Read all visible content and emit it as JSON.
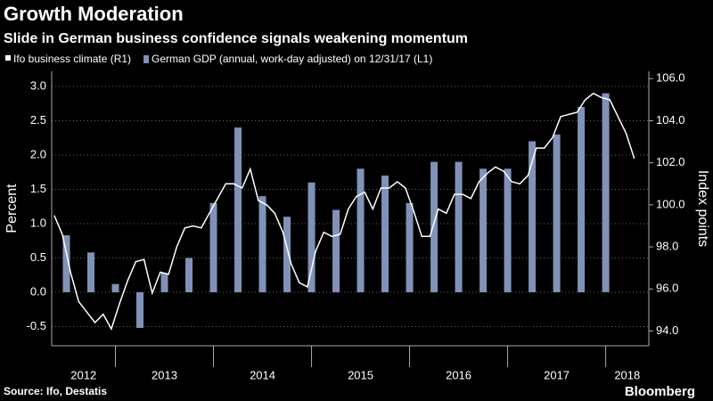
{
  "chart_data": {
    "type": "bar",
    "title": "Growth Moderation",
    "subtitle": "Slide in German business confidence signals weakening momentum",
    "source": "Source: Ifo, Destatis",
    "brand": "Bloomberg",
    "ylabel": "Percent",
    "y2label": "Index points",
    "xlim": [
      2012.35,
      2018.44
    ],
    "xticks": [
      2012,
      2013,
      2014,
      2015,
      2016,
      2017,
      2018
    ],
    "ylim": [
      -0.78,
      3.22
    ],
    "yticks": [
      -0.5,
      {
        "value": 0,
        "label": "0.0"
      },
      0.5,
      {
        "value": 1,
        "label": "1.0"
      },
      1.5,
      {
        "value": 2,
        "label": "2.0"
      },
      2.5,
      {
        "value": 3,
        "label": "3.0"
      }
    ],
    "y2lim": [
      93.3,
      106.35
    ],
    "y2ticks": [
      {
        "value": 94,
        "label": "94.0"
      },
      {
        "value": 96,
        "label": "96.0"
      },
      {
        "value": 98,
        "label": "98.0"
      },
      {
        "value": 100,
        "label": "100.0"
      },
      {
        "value": 102,
        "label": "102.0"
      },
      {
        "value": 104,
        "label": "104.0"
      },
      {
        "value": 106,
        "label": "106.0"
      }
    ],
    "grid": true,
    "series": [
      {
        "name": "Ifo business climate (R1)",
        "type": "line",
        "axis": "y2",
        "color": "#ffffff",
        "x": [
          2012.375,
          2012.458,
          2012.542,
          2012.625,
          2012.708,
          2012.792,
          2012.875,
          2012.958,
          2013.042,
          2013.125,
          2013.208,
          2013.292,
          2013.375,
          2013.458,
          2013.542,
          2013.625,
          2013.708,
          2013.792,
          2013.875,
          2013.958,
          2014.042,
          2014.125,
          2014.208,
          2014.292,
          2014.375,
          2014.458,
          2014.542,
          2014.625,
          2014.708,
          2014.792,
          2014.875,
          2014.958,
          2015.042,
          2015.125,
          2015.208,
          2015.292,
          2015.375,
          2015.458,
          2015.542,
          2015.625,
          2015.708,
          2015.792,
          2015.875,
          2015.958,
          2016.042,
          2016.125,
          2016.208,
          2016.292,
          2016.375,
          2016.458,
          2016.542,
          2016.625,
          2016.708,
          2016.792,
          2016.875,
          2016.958,
          2017.042,
          2017.125,
          2017.208,
          2017.292,
          2017.375,
          2017.458,
          2017.542,
          2017.625,
          2017.708,
          2017.792,
          2017.875,
          2017.958,
          2018.042,
          2018.125,
          2018.208,
          2018.292
        ],
        "values": [
          99.5,
          98.6,
          96.8,
          95.4,
          94.9,
          94.4,
          94.8,
          94.1,
          95.3,
          96.4,
          97.3,
          97.4,
          95.8,
          96.8,
          96.7,
          98.0,
          98.9,
          99.0,
          98.9,
          99.6,
          100.3,
          101.0,
          101.0,
          100.8,
          101.7,
          100.2,
          100.0,
          99.6,
          98.7,
          97.2,
          96.3,
          96.1,
          97.8,
          98.7,
          98.5,
          98.6,
          99.8,
          100.4,
          100.6,
          99.8,
          100.8,
          100.8,
          101.1,
          100.8,
          99.7,
          98.5,
          98.5,
          99.8,
          99.6,
          100.5,
          100.5,
          100.3,
          101.1,
          101.5,
          101.8,
          101.6,
          101.1,
          101.0,
          101.4,
          102.7,
          102.7,
          103.2,
          104.2,
          104.3,
          104.4,
          105.0,
          105.3,
          105.1,
          105.0,
          104.2,
          103.4,
          102.2
        ]
      },
      {
        "name": "German GDP (annual, work-day adjusted) on 12/31/17 (L1)",
        "type": "bar",
        "axis": "y",
        "color": "#8192b8",
        "x": [
          2012.5,
          2012.75,
          2013,
          2013.25,
          2013.5,
          2013.75,
          2014,
          2014.25,
          2014.5,
          2014.75,
          2015,
          2015.25,
          2015.5,
          2015.75,
          2016,
          2016.25,
          2016.5,
          2016.75,
          2017,
          2017.25,
          2017.5,
          2017.75,
          2018
        ],
        "values": [
          0.83,
          0.58,
          0.12,
          -0.52,
          0.28,
          0.5,
          1.3,
          2.4,
          1.4,
          1.1,
          1.6,
          1.2,
          1.8,
          1.7,
          1.3,
          1.9,
          1.9,
          1.8,
          1.8,
          2.2,
          2.3,
          2.7,
          2.9
        ]
      }
    ]
  }
}
